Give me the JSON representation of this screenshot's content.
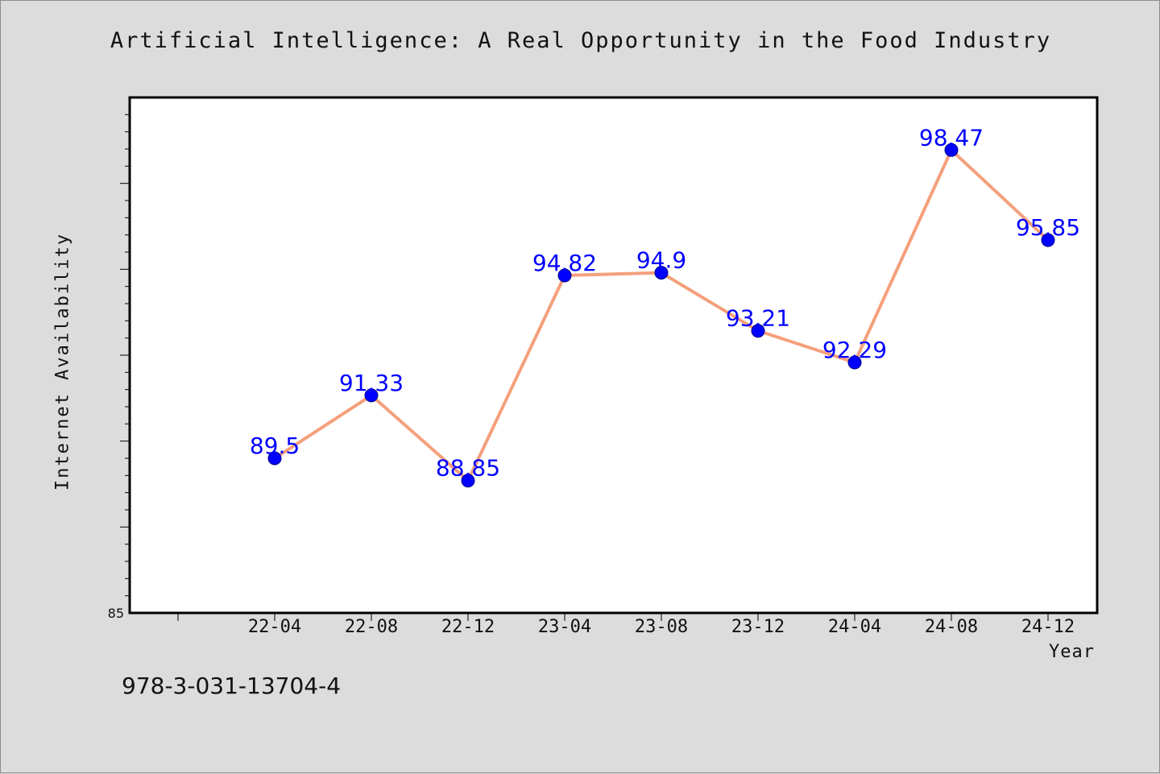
{
  "header": {
    "title": "Artificial Intelligence: A Real Opportunity in the Food Industry"
  },
  "footer": {
    "text": "978-3-031-13704-4"
  },
  "colors": {
    "background": "#dcdcdc",
    "plot_background": "#ffffff",
    "line": "#f4a07c",
    "marker": "#0000ff",
    "data_label": "#0000ff"
  },
  "chart_data": {
    "type": "line",
    "title": "Artificial Intelligence: A Real Opportunity in the Food Industry",
    "xlabel": "Year",
    "ylabel": "Internet Availability",
    "categories": [
      "22-04",
      "22-08",
      "22-12",
      "23-04",
      "23-08",
      "23-12",
      "24-04",
      "24-08",
      "24-12"
    ],
    "series": [
      {
        "values": [
          89.5,
          91.33,
          88.85,
          94.82,
          94.9,
          93.21,
          92.29,
          98.47,
          95.85
        ]
      }
    ],
    "data_labels": [
      "89.5",
      "91.33",
      "88.85",
      "94.82",
      "94.9",
      "93.21",
      "92.29",
      "98.47",
      "95.85"
    ],
    "ylim": [
      85,
      100
    ],
    "y_tick_labels": [
      "85"
    ],
    "grid": false,
    "legend": "none"
  }
}
